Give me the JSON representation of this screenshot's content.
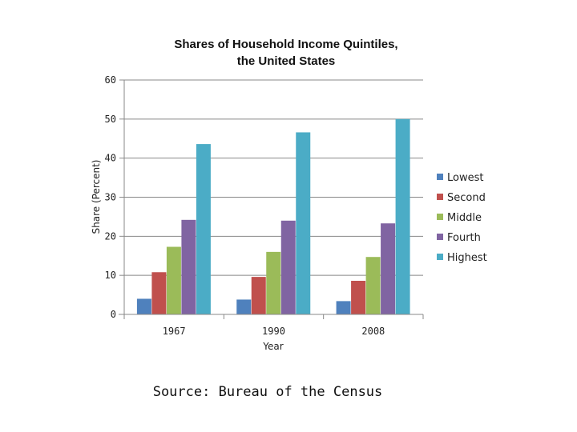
{
  "chart_data": {
    "type": "bar",
    "title_line1": "Shares of Household Income Quintiles,",
    "title_line2": "the United States",
    "xlabel": "Year",
    "ylabel": "Share (Percent)",
    "categories": [
      "1967",
      "1990",
      "2008"
    ],
    "yticks": [
      "0",
      "10",
      "20",
      "30",
      "40",
      "50",
      "60"
    ],
    "ylim": [
      0,
      60
    ],
    "grid": true,
    "legend_position": "right",
    "series": [
      {
        "name": "Lowest",
        "values": [
          4.0,
          3.8,
          3.4
        ],
        "color": "#4f81bd"
      },
      {
        "name": "Second",
        "values": [
          10.8,
          9.6,
          8.6
        ],
        "color": "#c0504d"
      },
      {
        "name": "Middle",
        "values": [
          17.3,
          16.0,
          14.7
        ],
        "color": "#9bbb59"
      },
      {
        "name": "Fourth",
        "values": [
          24.2,
          24.0,
          23.3
        ],
        "color": "#8064a2"
      },
      {
        "name": "Highest",
        "values": [
          43.6,
          46.6,
          50.0
        ],
        "color": "#4bacc6"
      }
    ],
    "source": "Source: Bureau of the Census"
  }
}
